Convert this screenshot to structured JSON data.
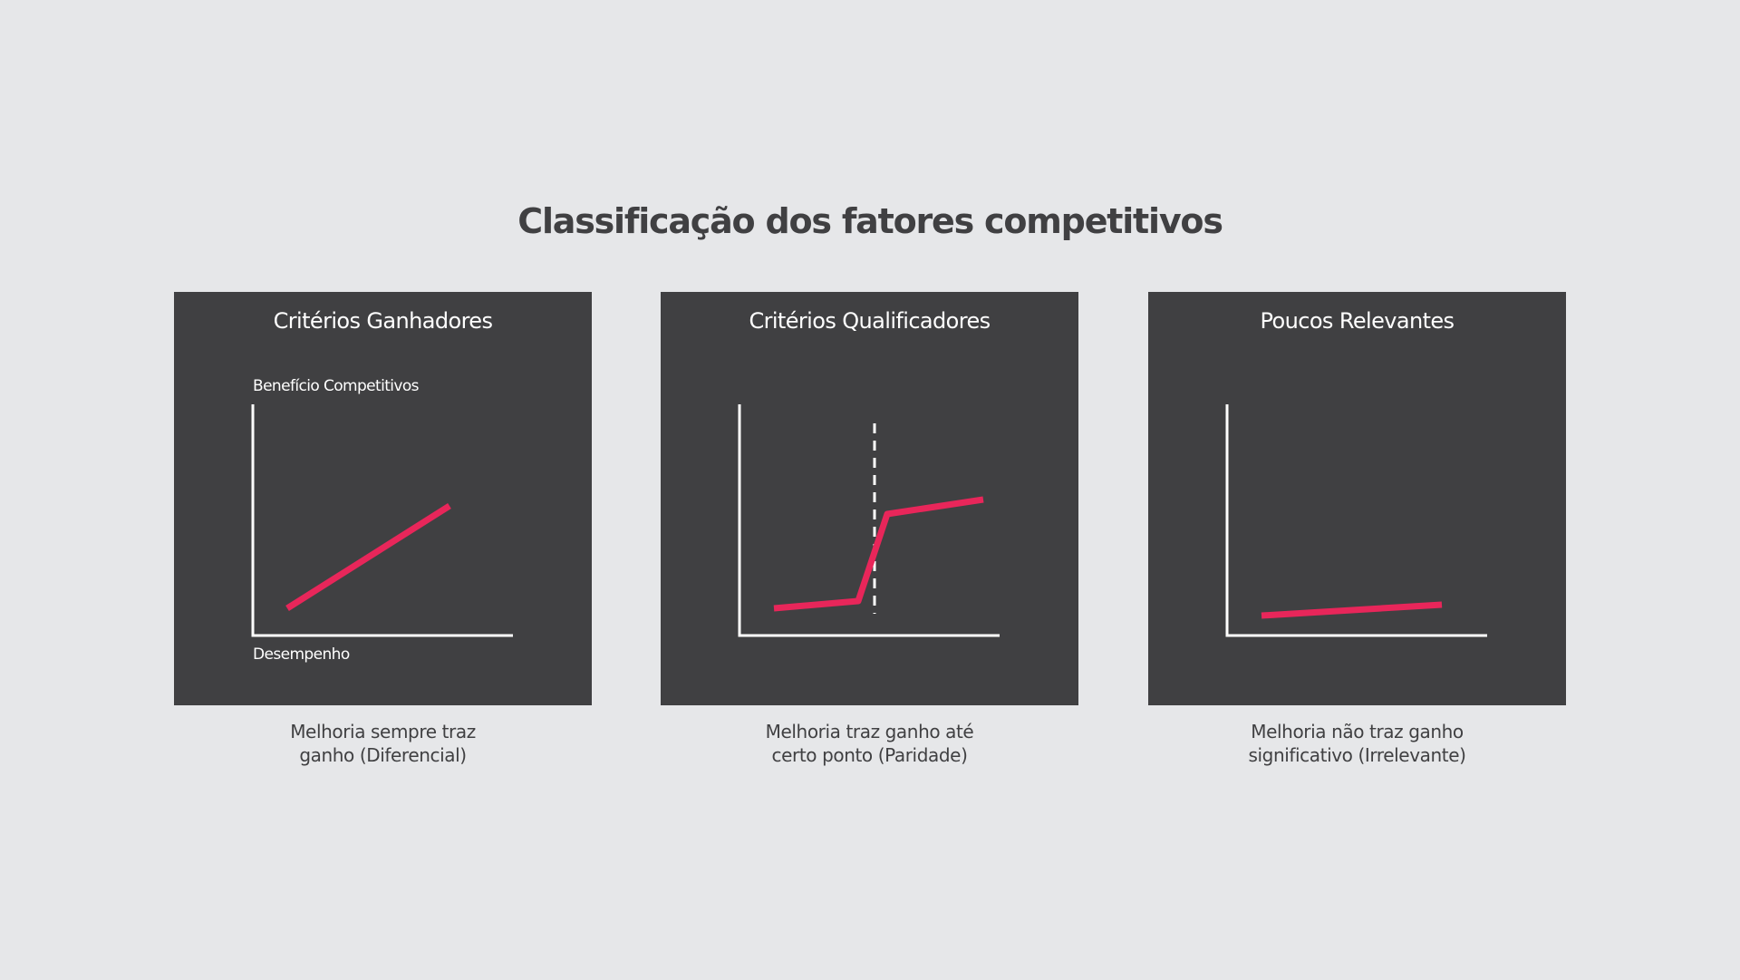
{
  "title": "Classificação dos fatores competitivos",
  "colors": {
    "background": "#e6e7e9",
    "panel": "#404042",
    "curve": "#e8265a",
    "axis": "#ffffff",
    "text_dark": "#404042"
  },
  "panels": [
    {
      "title": "Critérios Ganhadores",
      "y_label": "Benefício Competitivos",
      "x_label": "Desempenho",
      "caption_lines": [
        "Melhoria sempre traz",
        "ganho (Diferencial)"
      ]
    },
    {
      "title": "Critérios Qualificadores",
      "y_label": "",
      "x_label": "",
      "caption_lines": [
        "Melhoria traz ganho até",
        "certo ponto (Paridade)"
      ]
    },
    {
      "title": "Poucos Relevantes",
      "y_label": "",
      "x_label": "",
      "caption_lines": [
        "Melhoria não traz ganho",
        "significativo (Irrelevante)"
      ]
    }
  ]
}
